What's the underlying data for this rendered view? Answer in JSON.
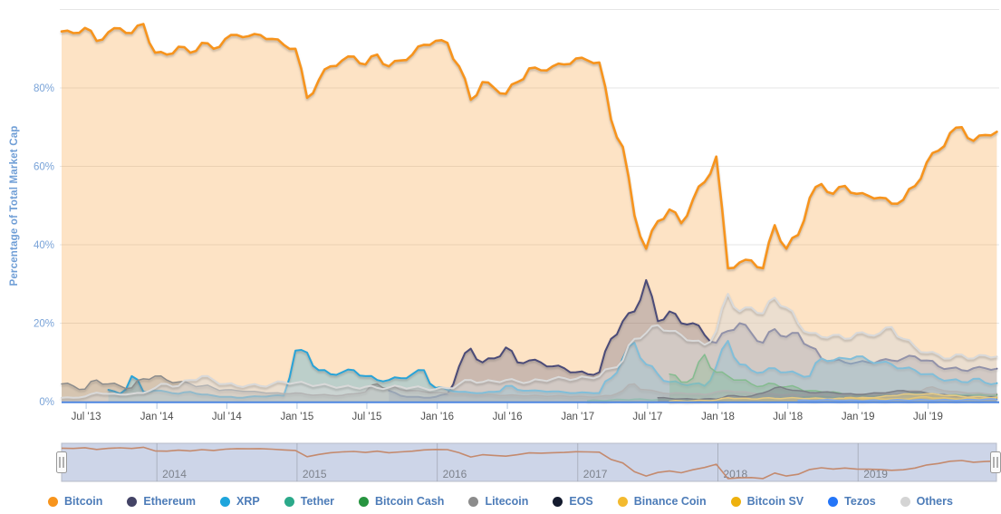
{
  "chart": {
    "y_axis_title": "Percentage of Total Market Cap",
    "y_ticks": [
      {
        "value": 0,
        "label": "0%"
      },
      {
        "value": 20,
        "label": "20%"
      },
      {
        "value": 40,
        "label": "40%"
      },
      {
        "value": 60,
        "label": "60%"
      },
      {
        "value": 80,
        "label": "80%"
      },
      {
        "value": 100,
        "label": ""
      }
    ],
    "x_ticks": [
      {
        "label": "Jul '13",
        "month": 2.1
      },
      {
        "label": "Jan '14",
        "month": 8.15
      },
      {
        "label": "Jul '14",
        "month": 14.13
      },
      {
        "label": "Jan '15",
        "month": 20.14
      },
      {
        "label": "Jul '15",
        "month": 26.11
      },
      {
        "label": "Jan '16",
        "month": 32.13
      },
      {
        "label": "Jul '16",
        "month": 38.13
      },
      {
        "label": "Jan '17",
        "month": 44.15
      },
      {
        "label": "Jul '17",
        "month": 50.12
      },
      {
        "label": "Jan '18",
        "month": 56.14
      },
      {
        "label": "Jul '18",
        "month": 62.12
      },
      {
        "label": "Jan '19",
        "month": 68.13
      },
      {
        "label": "Jul '19",
        "month": 74.11
      }
    ]
  },
  "colors": {
    "grid": "#e6e6e6",
    "tick": "#b3c6de",
    "axis_line": "#4e86e0",
    "y_label": "#79a3d8",
    "x_label": "#4d4d4d",
    "legend_text": "#4d7cb8",
    "nav_bg": "#cdd5e8",
    "nav_outline": "#b7bcc9",
    "nav_gridline": "#8f949e",
    "nav_text": "#7d828c",
    "nav_series": "#c48a6e",
    "handle_fill": "#fbfbfb",
    "handle_border": "#999999",
    "handle_lines": "#666666"
  },
  "chart_data": {
    "type": "area",
    "title": "",
    "xlabel": "",
    "ylabel": "Percentage of Total Market Cap",
    "ylim": [
      0,
      100
    ],
    "grid": true,
    "legend_position": "bottom",
    "x_description": "Monthly points; month 0 = late Apr 2013, month 80 = early Dec 2019",
    "n_months": 81,
    "series": [
      {
        "name": "Bitcoin",
        "color": "#f7941d",
        "fill_opacity": 0.26,
        "start_month_index": 0,
        "values": [
          94.4,
          94.0,
          95.3,
          92.0,
          94.2,
          95.2,
          94.0,
          96.3,
          89.0,
          88.5,
          90.5,
          89.0,
          91.5,
          90.0,
          92.5,
          93.5,
          93.2,
          93.5,
          92.5,
          91.0,
          90.0,
          77.5,
          82.0,
          85.5,
          87.0,
          88.0,
          86.0,
          88.5,
          85.5,
          87.0,
          88.5,
          91.0,
          92.0,
          91.5,
          85.5,
          77.0,
          81.5,
          80.0,
          78.5,
          81.5,
          85.0,
          84.5,
          85.5,
          86.0,
          87.5,
          87.0,
          86.5,
          72.0,
          65.0,
          47.5,
          39.0,
          46.0,
          49.0,
          45.5,
          51.5,
          56.0,
          62.5,
          34.0,
          35.5,
          36.0,
          34.0,
          45.0,
          39.0,
          42.5,
          52.0,
          55.5,
          53.0,
          55.0,
          53.0,
          52.5,
          52.0,
          50.5,
          51.5,
          55.0,
          61.0,
          64.0,
          68.5,
          70.0,
          66.5,
          68.0,
          68.8
        ]
      },
      {
        "name": "Ethereum",
        "color": "#4b4b78",
        "fill_opacity": 0.28,
        "start_month_index": 28,
        "values": [
          2.8,
          1.5,
          1.2,
          1.0,
          1.2,
          2.0,
          9.0,
          13.5,
          10.0,
          11.0,
          13.8,
          10.0,
          10.5,
          10.0,
          9.0,
          8.5,
          7.5,
          7.0,
          7.5,
          16.0,
          20.5,
          23.0,
          31.0,
          20.5,
          23.0,
          20.0,
          20.0,
          17.0,
          15.0,
          18.0,
          20.0,
          17.5,
          15.0,
          18.5,
          16.5,
          17.5,
          14.0,
          11.0,
          10.5,
          10.0,
          10.0,
          10.0,
          10.5,
          10.5,
          11.0,
          11.5,
          10.5,
          9.0,
          8.5,
          8.0,
          8.5,
          8.5,
          8.4
        ]
      },
      {
        "name": "XRP",
        "color": "#28a3d8",
        "fill_opacity": 0.3,
        "start_month_index": 4,
        "values": [
          3.0,
          2.0,
          6.5,
          2.5,
          2.8,
          2.5,
          2.0,
          2.5,
          1.8,
          1.5,
          1.2,
          1.0,
          1.2,
          1.3,
          1.5,
          1.5,
          13.0,
          12.5,
          8.0,
          7.0,
          7.5,
          8.0,
          6.5,
          5.5,
          5.5,
          6.0,
          7.0,
          8.0,
          3.5,
          3.0,
          2.5,
          2.3,
          2.2,
          2.5,
          4.0,
          3.0,
          2.8,
          2.7,
          2.6,
          2.4,
          2.2,
          2.3,
          2.2,
          6.0,
          11.0,
          15.0,
          9.5,
          7.0,
          5.0,
          4.5,
          4.5,
          4.0,
          9.0,
          15.5,
          9.5,
          8.0,
          7.5,
          8.5,
          7.5,
          7.0,
          6.5,
          11.0,
          10.5,
          11.0,
          11.5,
          10.5,
          10.0,
          9.5,
          8.5,
          8.0,
          7.0,
          6.0,
          5.5,
          5.0,
          5.8,
          4.8,
          4.7
        ]
      },
      {
        "name": "Tether",
        "color": "#2ba98a",
        "fill_opacity": 0.3,
        "start_month_index": 45,
        "values": [
          0.2,
          0.3,
          0.4,
          0.5,
          0.6,
          0.5,
          0.5,
          0.4,
          0.5,
          0.4,
          0.4,
          0.3,
          0.5,
          0.5,
          0.7,
          0.6,
          0.6,
          0.9,
          1.0,
          1.2,
          1.3,
          1.0,
          1.5,
          1.5,
          1.6,
          1.5,
          1.5,
          1.6,
          1.5,
          1.2,
          1.5,
          1.5,
          1.7,
          1.7,
          1.7,
          1.7
        ]
      },
      {
        "name": "Bitcoin Cash",
        "color": "#2f9e44",
        "fill_opacity": 0.35,
        "start_month_index": 52,
        "values": [
          7.0,
          5.0,
          6.0,
          12.0,
          7.5,
          6.5,
          5.5,
          4.5,
          4.0,
          4.5,
          3.8,
          3.5,
          2.8,
          2.5,
          2.5,
          1.8,
          1.6,
          1.5,
          1.6,
          1.6,
          1.8,
          2.2,
          2.0,
          1.8,
          1.7,
          1.6,
          1.7,
          1.7,
          1.7
        ]
      },
      {
        "name": "Litecoin",
        "color": "#8c8c8c",
        "fill_opacity": 0.35,
        "start_month_index": 0,
        "values": [
          4.5,
          4.0,
          3.2,
          5.5,
          4.5,
          4.0,
          3.5,
          5.8,
          6.5,
          5.5,
          5.0,
          4.5,
          4.0,
          3.5,
          3.0,
          2.8,
          2.6,
          2.4,
          2.2,
          2.0,
          2.2,
          1.8,
          1.7,
          1.6,
          1.6,
          2.0,
          2.5,
          4.5,
          3.5,
          3.0,
          2.8,
          2.5,
          2.3,
          2.2,
          2.0,
          1.8,
          1.8,
          1.7,
          1.6,
          1.6,
          1.5,
          1.5,
          1.4,
          1.4,
          1.3,
          1.2,
          1.3,
          1.5,
          2.8,
          4.5,
          3.0,
          2.5,
          2.0,
          2.2,
          2.0,
          1.8,
          2.5,
          2.8,
          2.5,
          2.2,
          2.0,
          1.9,
          1.8,
          1.7,
          1.9,
          1.8,
          1.7,
          1.8,
          1.9,
          1.8,
          1.9,
          2.0,
          2.5,
          2.8,
          3.5,
          3.2,
          2.6,
          2.4,
          2.2,
          2.0,
          2.0
        ]
      },
      {
        "name": "EOS",
        "color": "#1c2333",
        "fill_opacity": 0.4,
        "start_month_index": 51,
        "values": [
          1.0,
          0.8,
          0.7,
          0.6,
          0.7,
          0.6,
          1.5,
          1.3,
          1.4,
          2.2,
          3.5,
          3.2,
          2.8,
          2.3,
          2.4,
          2.3,
          2.0,
          1.8,
          2.0,
          2.2,
          2.5,
          2.8,
          2.5,
          2.2,
          1.8,
          1.5,
          1.3,
          1.2,
          1.1,
          1.1
        ]
      },
      {
        "name": "Binance Coin",
        "color": "#f3ba2f",
        "fill_opacity": 0.5,
        "start_month_index": 52,
        "values": [
          0.1,
          0.2,
          0.2,
          0.3,
          0.4,
          1.0,
          0.8,
          0.7,
          0.9,
          0.8,
          0.9,
          0.9,
          0.8,
          0.8,
          0.7,
          0.8,
          0.9,
          1.0,
          1.2,
          1.5,
          1.9,
          1.8,
          2.0,
          1.8,
          1.6,
          1.3,
          1.2,
          1.1,
          1.1
        ]
      },
      {
        "name": "Bitcoin SV",
        "color": "#eeb10e",
        "fill_opacity": 0.5,
        "start_month_index": 67,
        "values": [
          1.0,
          0.9,
          0.8,
          0.7,
          0.7,
          0.6,
          1.0,
          1.2,
          0.9,
          0.8,
          0.7,
          0.8,
          0.8,
          0.8
        ]
      },
      {
        "name": "Tezos",
        "color": "#2475f8",
        "fill_opacity": 0.55,
        "start_month_index": 63,
        "values": [
          0.3,
          0.3,
          0.4,
          0.4,
          0.3,
          0.3,
          0.3,
          0.3,
          0.4,
          0.4,
          0.4,
          0.4,
          0.4,
          0.4,
          0.4,
          0.5,
          0.6,
          0.6
        ]
      },
      {
        "name": "Others",
        "color": "#d9d9d9",
        "fill_opacity": 0.5,
        "start_month_index": 0,
        "values": [
          1.0,
          1.0,
          1.3,
          2.3,
          2.0,
          1.8,
          2.0,
          2.2,
          3.5,
          4.5,
          4.0,
          5.5,
          6.5,
          5.5,
          4.5,
          4.0,
          4.2,
          4.0,
          4.5,
          5.0,
          4.8,
          4.5,
          4.2,
          4.0,
          3.8,
          3.6,
          3.8,
          3.5,
          3.6,
          3.8,
          3.6,
          3.4,
          3.2,
          3.4,
          4.5,
          5.5,
          5.0,
          5.2,
          5.5,
          5.2,
          5.0,
          5.5,
          5.8,
          6.0,
          5.8,
          6.2,
          6.5,
          8.5,
          10.5,
          16.0,
          17.5,
          19.5,
          18.0,
          17.0,
          15.5,
          14.5,
          18.0,
          27.5,
          23.0,
          24.0,
          22.5,
          26.5,
          24.0,
          20.0,
          17.5,
          16.5,
          17.0,
          16.0,
          17.5,
          17.0,
          17.5,
          19.0,
          16.0,
          14.0,
          12.5,
          12.0,
          11.0,
          12.0,
          11.0,
          11.8,
          11.5
        ]
      }
    ]
  },
  "navigator": {
    "years": [
      {
        "label": "2014",
        "month": 8.15
      },
      {
        "label": "2015",
        "month": 20.14
      },
      {
        "label": "2016",
        "month": 32.13
      },
      {
        "label": "2017",
        "month": 44.15
      },
      {
        "label": "2018",
        "month": 56.14
      },
      {
        "label": "2019",
        "month": 68.13
      }
    ]
  },
  "legend": {
    "items": [
      {
        "label": "Bitcoin",
        "color": "#f7941d"
      },
      {
        "label": "Ethereum",
        "color": "#434366"
      },
      {
        "label": "XRP",
        "color": "#1ea5dc"
      },
      {
        "label": "Tether",
        "color": "#2ba98a"
      },
      {
        "label": "Bitcoin Cash",
        "color": "#279440"
      },
      {
        "label": "Litecoin",
        "color": "#8c8c8c"
      },
      {
        "label": "EOS",
        "color": "#141b2e"
      },
      {
        "label": "Binance Coin",
        "color": "#f3ba2f"
      },
      {
        "label": "Bitcoin SV",
        "color": "#eeb10e"
      },
      {
        "label": "Tezos",
        "color": "#2475f8"
      },
      {
        "label": "Others",
        "color": "#d4d4d4"
      }
    ]
  }
}
